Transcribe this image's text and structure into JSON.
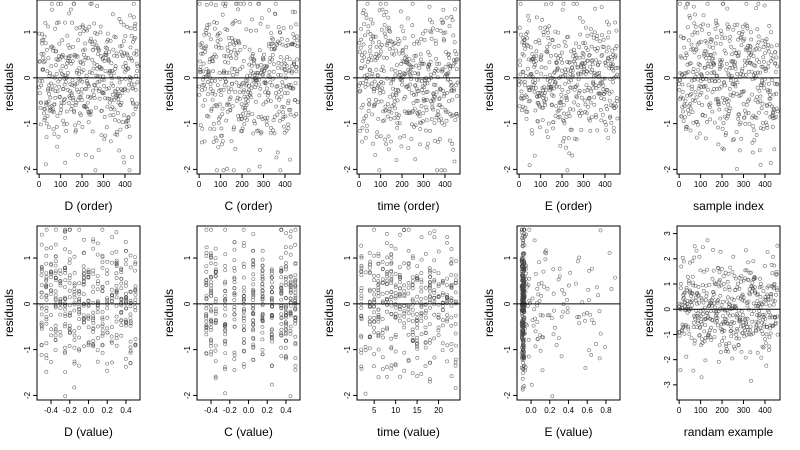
{
  "figure": {
    "background": "#ffffff",
    "point_color": "#444444",
    "zero_line_color": "#000000"
  },
  "chart_data": [
    {
      "type": "scatter",
      "xlabel": "D (order)",
      "ylabel": "residuals",
      "xlim": [
        -10,
        470
      ],
      "ylim": [
        -2.1,
        1.7
      ],
      "xticks": [
        0,
        100,
        200,
        300,
        400
      ],
      "yticks": [
        -2,
        -1,
        0,
        1
      ],
      "hline": 0,
      "seed": 11,
      "mode": "order",
      "points": 470
    },
    {
      "type": "scatter",
      "xlabel": "C (order)",
      "ylabel": "residuals",
      "xlim": [
        -10,
        470
      ],
      "ylim": [
        -2.1,
        1.7
      ],
      "xticks": [
        0,
        100,
        200,
        300,
        400
      ],
      "yticks": [
        -2,
        -1,
        0,
        1
      ],
      "hline": 0,
      "seed": 22,
      "mode": "order",
      "points": 470
    },
    {
      "type": "scatter",
      "xlabel": "time (order)",
      "ylabel": "residuals",
      "xlim": [
        -10,
        470
      ],
      "ylim": [
        -2.1,
        1.7
      ],
      "xticks": [
        0,
        100,
        200,
        300,
        400
      ],
      "yticks": [
        -2,
        -1,
        0,
        1
      ],
      "hline": 0,
      "seed": 33,
      "mode": "order",
      "points": 470
    },
    {
      "type": "scatter",
      "xlabel": "E (order)",
      "ylabel": "residuals",
      "xlim": [
        -10,
        470
      ],
      "ylim": [
        -2.1,
        1.7
      ],
      "xticks": [
        0,
        100,
        200,
        300,
        400
      ],
      "yticks": [
        -2,
        -1,
        0,
        1
      ],
      "hline": 0,
      "seed": 44,
      "mode": "order",
      "points": 470
    },
    {
      "type": "scatter",
      "xlabel": "sample index",
      "ylabel": "residuals",
      "xlim": [
        -10,
        470
      ],
      "ylim": [
        -2.1,
        1.7
      ],
      "xticks": [
        0,
        100,
        200,
        300,
        400
      ],
      "yticks": [
        -2,
        -1,
        0,
        1
      ],
      "hline": 0,
      "seed": 55,
      "mode": "order",
      "points": 470
    },
    {
      "type": "scatter",
      "xlabel": "D (value)",
      "ylabel": "residuals",
      "xlim": [
        -0.55,
        0.55
      ],
      "ylim": [
        -2.1,
        1.7
      ],
      "xticks": [
        -0.4,
        -0.2,
        0.0,
        0.2,
        0.4
      ],
      "yticks": [
        -2,
        -1,
        0,
        1
      ],
      "hline": 0,
      "seed": 66,
      "mode": "columns",
      "points": 420,
      "x_values": [
        -0.5,
        -0.45,
        -0.4,
        -0.35,
        -0.3,
        -0.25,
        -0.2,
        -0.15,
        -0.1,
        -0.05,
        0.0,
        0.05,
        0.1,
        0.15,
        0.2,
        0.25,
        0.3,
        0.35,
        0.4,
        0.45,
        0.5
      ]
    },
    {
      "type": "scatter",
      "xlabel": "C (value)",
      "ylabel": "residuals",
      "xlim": [
        -0.55,
        0.55
      ],
      "ylim": [
        -2.1,
        1.7
      ],
      "xticks": [
        -0.4,
        -0.2,
        0.0,
        0.2,
        0.4
      ],
      "yticks": [
        -2,
        -1,
        0,
        1
      ],
      "hline": 0,
      "seed": 77,
      "mode": "columns",
      "points": 420,
      "x_values": [
        -0.45,
        -0.4,
        -0.35,
        -0.25,
        -0.15,
        -0.05,
        0.05,
        0.15,
        0.25,
        0.35,
        0.4,
        0.45,
        0.5
      ]
    },
    {
      "type": "scatter",
      "xlabel": "time (value)",
      "ylabel": "residuals",
      "xlim": [
        1,
        25
      ],
      "ylim": [
        -2.1,
        1.7
      ],
      "xticks": [
        5,
        10,
        15,
        20
      ],
      "yticks": [
        -2,
        -1,
        0,
        1
      ],
      "hline": 0,
      "seed": 88,
      "mode": "columns",
      "points": 420,
      "x_values": [
        2,
        3,
        4,
        5,
        6,
        7,
        8,
        9,
        10,
        11,
        12,
        13,
        14,
        15,
        16,
        17,
        18,
        19,
        20,
        21,
        22,
        23,
        24
      ]
    },
    {
      "type": "scatter",
      "xlabel": "E (value)",
      "ylabel": "residuals",
      "xlim": [
        -0.15,
        0.95
      ],
      "ylim": [
        -2.1,
        1.7
      ],
      "xticks": [
        0.0,
        0.2,
        0.4,
        0.6,
        0.8
      ],
      "yticks": [
        -2,
        -1,
        0,
        1
      ],
      "hline": 0,
      "seed": 99,
      "mode": "skewed",
      "points": 420
    },
    {
      "type": "scatter",
      "xlabel": "randam example",
      "ylabel": "residuals",
      "xlim": [
        -10,
        470
      ],
      "ylim": [
        -3.6,
        3.3
      ],
      "xticks": [
        0,
        100,
        200,
        300,
        400
      ],
      "yticks": [
        -3,
        -2,
        -1,
        0,
        1,
        2,
        3
      ],
      "hline": 0,
      "seed": 111,
      "mode": "order",
      "points": 470,
      "spread": 1.0
    }
  ]
}
